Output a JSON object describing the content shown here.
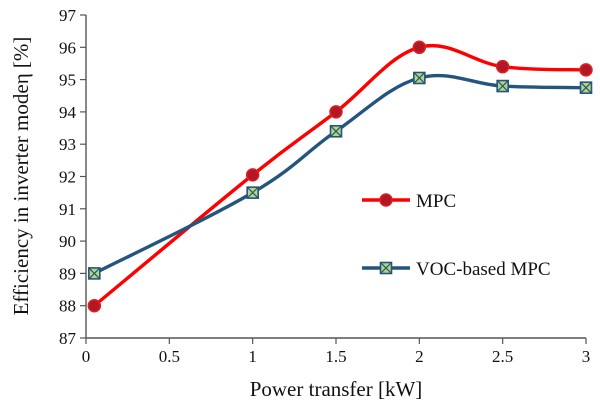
{
  "chart_data": {
    "type": "line",
    "title": "",
    "xlabel": "Power transfer [kW]",
    "ylabel": "Efficiency in inverter modeη [%]",
    "x_ticks": [
      "0",
      "0.5",
      "1",
      "1.5",
      "2",
      "2.5",
      "3"
    ],
    "y_ticks": [
      "87",
      "88",
      "89",
      "90",
      "91",
      "92",
      "93",
      "94",
      "95",
      "96",
      "97"
    ],
    "xlim": [
      0,
      3
    ],
    "ylim": [
      87,
      97
    ],
    "grid": false,
    "legend_position": "right",
    "series": [
      {
        "name": "MPC",
        "color": "#ff0000",
        "marker": "circle",
        "marker_color": "#b01825",
        "points": [
          {
            "x": 0.05,
            "y": 88.0
          },
          {
            "x": 1.0,
            "y": 92.05
          },
          {
            "x": 1.5,
            "y": 94.0
          },
          {
            "x": 2.0,
            "y": 96.0
          },
          {
            "x": 2.5,
            "y": 95.4
          },
          {
            "x": 3.0,
            "y": 95.3
          }
        ]
      },
      {
        "name": "VOC-based MPC",
        "color": "#24557f",
        "marker": "square-x",
        "marker_color": "#b5d67a",
        "points": [
          {
            "x": 0.05,
            "y": 89.0
          },
          {
            "x": 1.0,
            "y": 91.5
          },
          {
            "x": 1.5,
            "y": 93.4
          },
          {
            "x": 2.0,
            "y": 95.05
          },
          {
            "x": 2.5,
            "y": 94.8
          },
          {
            "x": 3.0,
            "y": 94.75
          }
        ]
      }
    ]
  }
}
